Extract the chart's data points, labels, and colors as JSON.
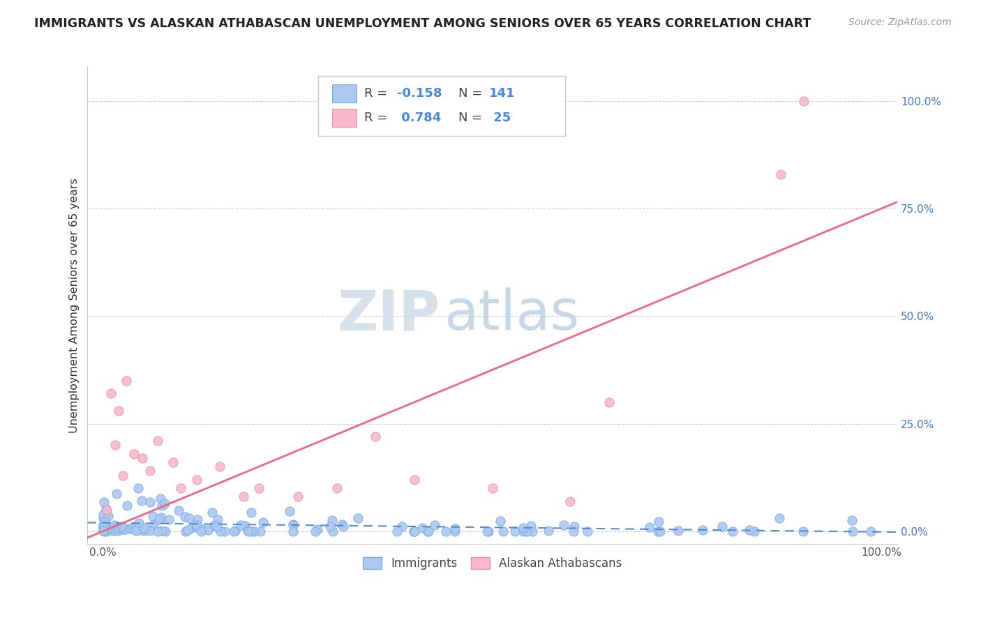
{
  "title": "IMMIGRANTS VS ALASKAN ATHABASCAN UNEMPLOYMENT AMONG SENIORS OVER 65 YEARS CORRELATION CHART",
  "source": "Source: ZipAtlas.com",
  "ylabel": "Unemployment Among Seniors over 65 years",
  "xlim": [
    -0.02,
    1.02
  ],
  "ylim": [
    -0.03,
    1.08
  ],
  "yticks": [
    0.0,
    0.25,
    0.5,
    0.75,
    1.0
  ],
  "ytick_labels": [
    "0.0%",
    "25.0%",
    "50.0%",
    "75.0%",
    "100.0%"
  ],
  "xtick_labels": [
    "0.0%",
    "100.0%"
  ],
  "xticks": [
    0.0,
    1.0
  ],
  "immigrants_color": "#aac8f0",
  "athabascan_color": "#f8b8c8",
  "immigrants_edge": "#7aaae0",
  "athabascan_edge": "#e890a8",
  "trend_immigrants_color": "#5588cc",
  "trend_athabascan_color": "#ee6688",
  "watermark_zip": "ZIP",
  "watermark_atlas": "atlas",
  "background_color": "#ffffff",
  "grid_color": "#d0d0d0"
}
